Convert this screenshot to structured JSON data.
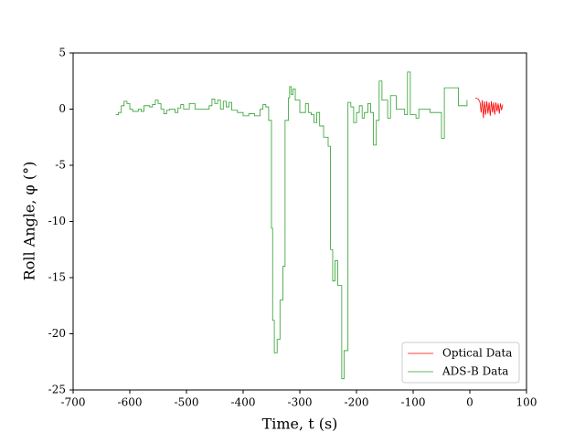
{
  "chart_data": {
    "type": "line",
    "xlabel": "Time, t (s)",
    "ylabel": "Roll Angle, φ (°)",
    "xlim": [
      -700,
      100
    ],
    "xticks": [
      -700,
      -600,
      -500,
      -400,
      -300,
      -200,
      -100,
      0,
      100
    ],
    "ylim": [
      -25,
      5
    ],
    "yticks": [
      -25,
      -20,
      -15,
      -10,
      -5,
      0,
      5
    ],
    "legend": "lower right",
    "series": [
      {
        "name": "Optical Data",
        "color": "#ff0000",
        "drawstyle": "default",
        "x": [
          10,
          15,
          18,
          20,
          22,
          24,
          26,
          28,
          30,
          32,
          34,
          36,
          38,
          40,
          42,
          44,
          46,
          48,
          50,
          52,
          54,
          56,
          58
        ],
        "values": [
          1.0,
          0.9,
          0.6,
          -0.3,
          0.8,
          -0.8,
          0.7,
          -0.5,
          0.7,
          -0.4,
          0.6,
          -0.6,
          0.7,
          -0.3,
          0.6,
          -0.5,
          0.6,
          -0.2,
          0.5,
          -0.4,
          0.5,
          -0.1,
          0.4
        ]
      },
      {
        "name": "ADS-B Data",
        "color": "#2ca02c",
        "drawstyle": "steps-post",
        "x": [
          -625,
          -620,
          -615,
          -610,
          -605,
          -600,
          -595,
          -585,
          -580,
          -575,
          -565,
          -560,
          -555,
          -550,
          -545,
          -540,
          -535,
          -530,
          -520,
          -515,
          -510,
          -505,
          -495,
          -485,
          -460,
          -455,
          -450,
          -445,
          -440,
          -435,
          -430,
          -425,
          -420,
          -410,
          -400,
          -390,
          -380,
          -370,
          -365,
          -360,
          -355,
          -350,
          -348,
          -345,
          -340,
          -335,
          -330,
          -326,
          -320,
          -318,
          -315,
          -312,
          -308,
          -300,
          -290,
          -285,
          -280,
          -275,
          -270,
          -265,
          -258,
          -250,
          -246,
          -242,
          -238,
          -233,
          -226,
          -222,
          -215,
          -210,
          -205,
          -200,
          -195,
          -190,
          -186,
          -180,
          -175,
          -170,
          -165,
          -160,
          -155,
          -145,
          -140,
          -130,
          -115,
          -110,
          -105,
          -95,
          -90,
          -70,
          -50,
          -45,
          -20,
          -5
        ],
        "values": [
          -0.5,
          -0.3,
          0.3,
          0.7,
          0.5,
          0,
          -0.2,
          0,
          -0.2,
          0.3,
          0.2,
          0.4,
          0.8,
          0.5,
          0,
          -0.4,
          -0.1,
          0,
          -0.3,
          0.1,
          0.4,
          0,
          0.5,
          0,
          0.3,
          0.9,
          0.5,
          0.8,
          0,
          0.7,
          0.2,
          0.6,
          -0.1,
          -0.3,
          -0.6,
          -0.4,
          -0.6,
          0,
          0.4,
          0.2,
          -1,
          -10.6,
          -18.8,
          -21.7,
          -20.5,
          -17,
          -14,
          -1,
          1,
          2,
          1.3,
          1.8,
          0.8,
          -0.3,
          0.5,
          -0.3,
          -0.5,
          -1.2,
          -0.3,
          -1.5,
          -2.5,
          -3.3,
          -12.5,
          -15.3,
          -13.5,
          -15.7,
          -24,
          -21.5,
          0.6,
          0.2,
          -1.2,
          -0.3,
          0.3,
          -0.8,
          -0.3,
          0.5,
          -0.3,
          -3.2,
          -1,
          2.5,
          0.8,
          -0.8,
          1.2,
          0,
          -0.5,
          3.3,
          -0.5,
          -0.8,
          0,
          -0.3,
          -2.6,
          1.9,
          0.3,
          0.8
        ]
      }
    ]
  }
}
